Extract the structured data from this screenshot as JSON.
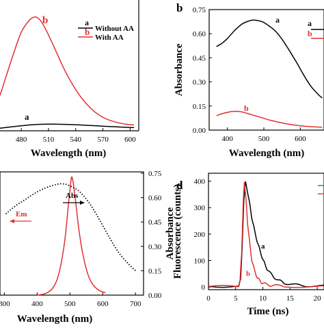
{
  "chart_data": [
    {
      "panel": "",
      "type": "line",
      "xlabel": "Wavelength (nm)",
      "ylabel": "",
      "xlim": [
        455,
        605
      ],
      "ylim": [
        0,
        1
      ],
      "x_ticks": [
        "480",
        "510",
        "540",
        "570",
        "600"
      ],
      "series": [
        {
          "name": "With AA",
          "marker": "b",
          "color": "#e03030",
          "x": [
            455,
            462,
            470,
            478,
            486,
            492,
            496,
            500,
            506,
            514,
            524,
            534,
            544,
            556,
            568,
            580,
            592,
            600
          ],
          "y": [
            0.3,
            0.48,
            0.68,
            0.86,
            0.96,
            0.995,
            0.985,
            0.95,
            0.86,
            0.72,
            0.54,
            0.39,
            0.27,
            0.165,
            0.1,
            0.065,
            0.045,
            0.04
          ]
        },
        {
          "name": "Without AA",
          "marker": "a",
          "color": "#000000",
          "x": [
            455,
            470,
            485,
            497,
            510,
            525,
            540,
            555,
            570,
            585,
            600
          ],
          "y": [
            0.01,
            0.025,
            0.038,
            0.045,
            0.047,
            0.045,
            0.04,
            0.034,
            0.027,
            0.021,
            0.016
          ]
        }
      ]
    },
    {
      "panel": "b",
      "type": "line",
      "xlabel": "Wavelength (nm)",
      "ylabel": "Absorbance",
      "xlim": [
        350,
        665
      ],
      "ylim": [
        0,
        0.75
      ],
      "x_ticks": [
        "400",
        "500",
        "600"
      ],
      "y_ticks": [
        "0.00",
        "0.15",
        "0.30",
        "0.45",
        "0.60",
        "0.75"
      ],
      "series": [
        {
          "name": "",
          "marker": "a",
          "color": "#000000",
          "x": [
            370,
            385,
            400,
            420,
            440,
            460,
            470,
            480,
            495,
            510,
            530,
            550,
            570,
            590,
            610,
            630,
            650,
            660
          ],
          "y": [
            0.52,
            0.54,
            0.57,
            0.62,
            0.66,
            0.68,
            0.685,
            0.683,
            0.675,
            0.655,
            0.62,
            0.565,
            0.495,
            0.42,
            0.34,
            0.27,
            0.22,
            0.2
          ]
        },
        {
          "name": "",
          "marker": "b",
          "color": "#e03030",
          "x": [
            370,
            390,
            410,
            425,
            440,
            460,
            490,
            520,
            560,
            600,
            640,
            660
          ],
          "y": [
            0.09,
            0.105,
            0.115,
            0.117,
            0.113,
            0.1,
            0.08,
            0.06,
            0.04,
            0.027,
            0.02,
            0.018
          ]
        }
      ],
      "legend_markers": [
        "a",
        "b"
      ]
    },
    {
      "panel": "",
      "type": "line",
      "xlabel": "Wavelength (nm)",
      "ylabel": "",
      "y2label": "Absorbance",
      "xlim": [
        295,
        710
      ],
      "y2lim": [
        0,
        0.75
      ],
      "x_ticks": [
        "300",
        "400",
        "500",
        "600",
        "700"
      ],
      "y2_ticks": [
        "0.00",
        "0.15",
        "0.30",
        "0.45",
        "0.60",
        "0.75"
      ],
      "annotations": [
        "Em",
        "Abs"
      ],
      "series": [
        {
          "name": "Em",
          "color": "#e03030",
          "x": [
            395,
            420,
            440,
            455,
            466,
            475,
            482,
            488,
            493,
            497,
            500,
            505,
            512,
            520,
            530,
            545,
            560,
            580,
            600
          ],
          "y": [
            0.0,
            0.01,
            0.04,
            0.1,
            0.19,
            0.3,
            0.42,
            0.55,
            0.65,
            0.72,
            0.72,
            0.66,
            0.54,
            0.4,
            0.27,
            0.14,
            0.07,
            0.03,
            0.015
          ]
        },
        {
          "name": "Abs",
          "color": "#000000",
          "dash": true,
          "x": [
            300,
            330,
            360,
            390,
            420,
            450,
            470,
            490,
            520,
            550,
            580,
            610,
            640,
            670,
            690
          ],
          "y": [
            0.5,
            0.55,
            0.59,
            0.63,
            0.66,
            0.68,
            0.685,
            0.675,
            0.64,
            0.57,
            0.47,
            0.36,
            0.26,
            0.19,
            0.15
          ]
        }
      ]
    },
    {
      "panel": "d",
      "type": "line",
      "xlabel": "Time (ns)",
      "ylabel": "Fluorescence (counts)",
      "xlim": [
        0,
        22
      ],
      "ylim": [
        -10,
        430
      ],
      "x_ticks": [
        "0",
        "5",
        "10",
        "15",
        "20"
      ],
      "y_ticks": [
        "0",
        "100",
        "200",
        "300",
        "400"
      ],
      "series": [
        {
          "name": "",
          "marker": "a",
          "color": "#000000",
          "x": [
            0,
            5.6,
            5.9,
            6.2,
            6.5,
            6.8,
            7.2,
            7.6,
            8,
            8.5,
            9,
            9.5,
            10,
            10.5,
            11,
            12,
            13,
            14,
            16,
            18,
            22
          ],
          "y": [
            3,
            3,
            30,
            150,
            330,
            395,
            360,
            310,
            260,
            210,
            170,
            135,
            105,
            80,
            60,
            38,
            24,
            15,
            8,
            5,
            3
          ]
        },
        {
          "name": "",
          "marker": "b",
          "color": "#e03030",
          "x": [
            0,
            5.5,
            5.8,
            6.1,
            6.4,
            6.6,
            6.9,
            7.2,
            7.6,
            8,
            8.5,
            9,
            9.5,
            10,
            11,
            12,
            14,
            22
          ],
          "y": [
            2,
            2,
            20,
            130,
            320,
            400,
            330,
            240,
            160,
            100,
            60,
            35,
            22,
            14,
            8,
            5,
            3,
            2
          ]
        }
      ]
    }
  ],
  "labels": {
    "a_legend_a": "a",
    "a_legend_a_text": "Without AA",
    "a_legend_b": "b",
    "a_legend_b_text": "With AA",
    "a_curve_a": "a",
    "a_curve_b": "b",
    "b_curve_a": "a",
    "b_curve_b": "b",
    "b_legend_a": "a",
    "b_legend_b": "b",
    "d_curve_a": "a",
    "d_curve_b": "b"
  },
  "colors": {
    "red": "#e03030",
    "black": "#000000"
  }
}
